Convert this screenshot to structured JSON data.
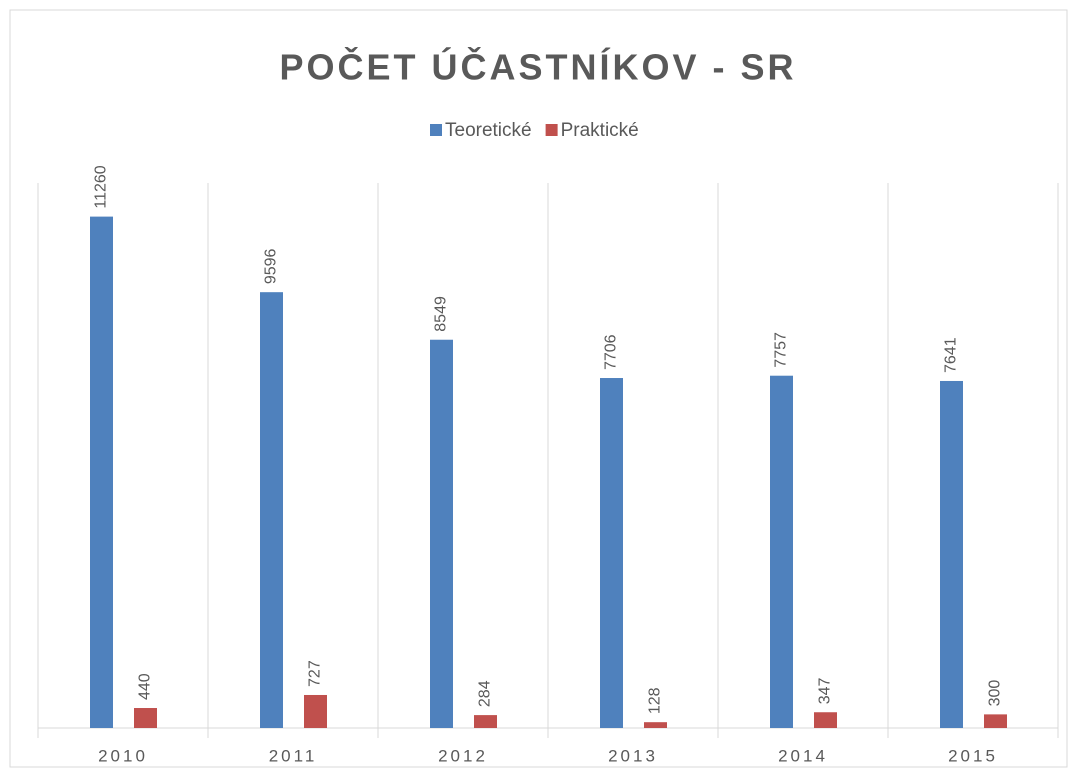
{
  "chart_data": {
    "type": "bar",
    "title": "POČET ÚČASTNÍKOV - SR",
    "categories": [
      "2010",
      "2011",
      "2012",
      "2013",
      "2014",
      "2015"
    ],
    "series": [
      {
        "name": "Teoretické",
        "color": "#4f81bd",
        "values": [
          11260,
          9596,
          8549,
          7706,
          7757,
          7641
        ]
      },
      {
        "name": "Praktické",
        "color": "#c0504d",
        "values": [
          440,
          727,
          284,
          128,
          347,
          300
        ]
      }
    ],
    "ylim": [
      0,
      12000
    ],
    "legend": "top"
  }
}
